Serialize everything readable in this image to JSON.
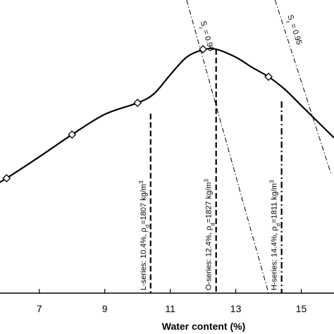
{
  "chart_data": {
    "type": "line",
    "title": "",
    "xlabel": "Water content (%)",
    "ylabel": "",
    "xlim": [
      5.8,
      16.0
    ],
    "x_ticks": [
      7,
      9,
      11,
      13,
      15
    ],
    "grid": false,
    "series": [
      {
        "style": "solid",
        "marker": "diamond",
        "x": [
          6,
          8,
          10,
          12,
          14
        ],
        "y": [
          0.392,
          0.541,
          0.649,
          0.832,
          0.738
        ]
      }
    ],
    "curve": {
      "x": [
        5.5,
        6,
        7,
        8,
        9,
        10,
        10.5,
        11,
        11.5,
        12,
        12.4,
        13,
        13.5,
        14,
        14.5,
        15,
        15.5,
        16
      ],
      "y": [
        0.36,
        0.392,
        0.465,
        0.541,
        0.61,
        0.649,
        0.68,
        0.745,
        0.805,
        0.83,
        0.832,
        0.805,
        0.77,
        0.738,
        0.695,
        0.64,
        0.585,
        0.53
      ]
    },
    "saturation_lines": [
      {
        "label": "S_r = 0.90",
        "points": [
          [
            11.5,
            1.0
          ],
          [
            14.0,
            0.0
          ]
        ]
      },
      {
        "label": "S_r = 0.95",
        "points": [
          [
            14.2,
            1.0
          ],
          [
            15.9,
            0.41
          ]
        ]
      }
    ],
    "annotations": [
      {
        "series": "L-series",
        "text": "L-series: 10.4%, ρ_d=1807 kg/m³",
        "x": 10.4,
        "y_top": 0.612,
        "style": "dashed"
      },
      {
        "series": "O-series",
        "text": "O-series: 12.4%, ρ_d=1827 kg/m³",
        "x": 12.4,
        "y_top": 0.832,
        "style": "dashed"
      },
      {
        "series": "H-series",
        "text": "H-series: 14.4%, ρ_d=1811 kg/m³",
        "x": 14.4,
        "y_top": 0.654,
        "style": "dashdot"
      }
    ]
  }
}
